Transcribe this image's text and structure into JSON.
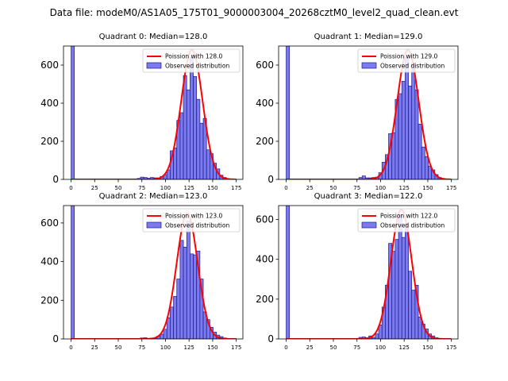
{
  "figure": {
    "title": "Data file: modeM0/AS1A05_175T01_9000003004_20268cztM0_level2_quad_clean.evt"
  },
  "style": {
    "bar_fill": "#7b7bef",
    "bar_edge": "#1a1a8c",
    "curve_color": "#ff0000",
    "axis_color": "#000000"
  },
  "chart_data": [
    {
      "type": "bar",
      "title": "Quadrant 0: Median=128.0",
      "xlim": [
        -8,
        182
      ],
      "ylim": [
        0,
        700
      ],
      "xticks": [
        0,
        25,
        50,
        75,
        100,
        125,
        150,
        175
      ],
      "yticks": [
        0,
        200,
        400,
        600
      ],
      "bin_width": 3.5,
      "legend": {
        "placement": "top-right",
        "line_label": "Poission with 128.0",
        "bar_label": "Observed distribution"
      },
      "bins": [
        {
          "x": 0,
          "count": 700
        },
        {
          "x": 70,
          "count": 5
        },
        {
          "x": 73.5,
          "count": 12
        },
        {
          "x": 77,
          "count": 10
        },
        {
          "x": 80.5,
          "count": 6
        },
        {
          "x": 84,
          "count": 10
        },
        {
          "x": 87.5,
          "count": 8
        },
        {
          "x": 91,
          "count": 8
        },
        {
          "x": 94.5,
          "count": 15
        },
        {
          "x": 98,
          "count": 25
        },
        {
          "x": 101.5,
          "count": 50
        },
        {
          "x": 105,
          "count": 150
        },
        {
          "x": 108.5,
          "count": 165
        },
        {
          "x": 112,
          "count": 310
        },
        {
          "x": 115.5,
          "count": 350
        },
        {
          "x": 119,
          "count": 545
        },
        {
          "x": 122.5,
          "count": 470
        },
        {
          "x": 126,
          "count": 640
        },
        {
          "x": 129.5,
          "count": 540
        },
        {
          "x": 133,
          "count": 420
        },
        {
          "x": 136.5,
          "count": 295
        },
        {
          "x": 140,
          "count": 320
        },
        {
          "x": 143.5,
          "count": 155
        },
        {
          "x": 147,
          "count": 135
        },
        {
          "x": 150.5,
          "count": 85
        },
        {
          "x": 154,
          "count": 55
        },
        {
          "x": 157.5,
          "count": 22
        },
        {
          "x": 161,
          "count": 10
        },
        {
          "x": 164.5,
          "count": 4
        }
      ],
      "curve": {
        "mean": 128.0,
        "peak": 680
      }
    },
    {
      "type": "bar",
      "title": "Quadrant 1: Median=129.0",
      "xlim": [
        -8,
        182
      ],
      "ylim": [
        0,
        700
      ],
      "xticks": [
        0,
        25,
        50,
        75,
        100,
        125,
        150,
        175
      ],
      "yticks": [
        0,
        200,
        400,
        600
      ],
      "bin_width": 3.5,
      "legend": {
        "placement": "top-right",
        "line_label": "Poission with 129.0",
        "bar_label": "Observed distribution"
      },
      "bins": [
        {
          "x": 0,
          "count": 700
        },
        {
          "x": 77,
          "count": 10
        },
        {
          "x": 80.5,
          "count": 18
        },
        {
          "x": 84,
          "count": 8
        },
        {
          "x": 87.5,
          "count": 8
        },
        {
          "x": 91,
          "count": 10
        },
        {
          "x": 94.5,
          "count": 12
        },
        {
          "x": 98,
          "count": 35
        },
        {
          "x": 101.5,
          "count": 90
        },
        {
          "x": 105,
          "count": 130
        },
        {
          "x": 108.5,
          "count": 240
        },
        {
          "x": 112,
          "count": 245
        },
        {
          "x": 115.5,
          "count": 420
        },
        {
          "x": 119,
          "count": 450
        },
        {
          "x": 122.5,
          "count": 515
        },
        {
          "x": 126,
          "count": 640
        },
        {
          "x": 129.5,
          "count": 490
        },
        {
          "x": 133,
          "count": 610
        },
        {
          "x": 136.5,
          "count": 470
        },
        {
          "x": 140,
          "count": 290
        },
        {
          "x": 143.5,
          "count": 170
        },
        {
          "x": 147,
          "count": 120
        },
        {
          "x": 150.5,
          "count": 70
        },
        {
          "x": 154,
          "count": 50
        },
        {
          "x": 157.5,
          "count": 25
        },
        {
          "x": 161,
          "count": 10
        },
        {
          "x": 164.5,
          "count": 5
        }
      ],
      "curve": {
        "mean": 129.0,
        "peak": 680
      }
    },
    {
      "type": "bar",
      "title": "Quadrant 2: Median=123.0",
      "xlim": [
        -8,
        182
      ],
      "ylim": [
        0,
        690
      ],
      "xticks": [
        0,
        25,
        50,
        75,
        100,
        125,
        150,
        175
      ],
      "yticks": [
        0,
        200,
        400,
        600
      ],
      "bin_width": 3.5,
      "legend": {
        "placement": "top-right",
        "line_label": "Poission with 123.0",
        "bar_label": "Observed distribution"
      },
      "bins": [
        {
          "x": 0,
          "count": 690
        },
        {
          "x": 73.5,
          "count": 5
        },
        {
          "x": 77,
          "count": 6
        },
        {
          "x": 84,
          "count": 4
        },
        {
          "x": 87.5,
          "count": 5
        },
        {
          "x": 91,
          "count": 15
        },
        {
          "x": 94.5,
          "count": 25
        },
        {
          "x": 98,
          "count": 50
        },
        {
          "x": 101.5,
          "count": 110
        },
        {
          "x": 105,
          "count": 165
        },
        {
          "x": 108.5,
          "count": 220
        },
        {
          "x": 112,
          "count": 310
        },
        {
          "x": 115.5,
          "count": 510
        },
        {
          "x": 119,
          "count": 475
        },
        {
          "x": 122.5,
          "count": 610
        },
        {
          "x": 126,
          "count": 440
        },
        {
          "x": 129.5,
          "count": 435
        },
        {
          "x": 133,
          "count": 455
        },
        {
          "x": 136.5,
          "count": 310
        },
        {
          "x": 140,
          "count": 140
        },
        {
          "x": 143.5,
          "count": 100
        },
        {
          "x": 147,
          "count": 60
        },
        {
          "x": 150.5,
          "count": 35
        },
        {
          "x": 154,
          "count": 20
        },
        {
          "x": 157.5,
          "count": 12
        },
        {
          "x": 161,
          "count": 5
        }
      ],
      "curve": {
        "mean": 123.0,
        "peak": 650
      }
    },
    {
      "type": "bar",
      "title": "Quadrant 3: Median=122.0",
      "xlim": [
        -8,
        182
      ],
      "ylim": [
        0,
        670
      ],
      "xticks": [
        0,
        25,
        50,
        75,
        100,
        125,
        150,
        175
      ],
      "yticks": [
        0,
        200,
        400,
        600
      ],
      "bin_width": 3.5,
      "legend": {
        "placement": "top-right",
        "line_label": "Poission with 122.0",
        "bar_label": "Observed distribution"
      },
      "bins": [
        {
          "x": 0,
          "count": 670
        },
        {
          "x": 77,
          "count": 8
        },
        {
          "x": 80.5,
          "count": 10
        },
        {
          "x": 84,
          "count": 6
        },
        {
          "x": 87.5,
          "count": 15
        },
        {
          "x": 91,
          "count": 8
        },
        {
          "x": 94.5,
          "count": 25
        },
        {
          "x": 98,
          "count": 70
        },
        {
          "x": 101.5,
          "count": 160
        },
        {
          "x": 105,
          "count": 270
        },
        {
          "x": 108.5,
          "count": 480
        },
        {
          "x": 112,
          "count": 440
        },
        {
          "x": 115.5,
          "count": 500
        },
        {
          "x": 119,
          "count": 620
        },
        {
          "x": 122.5,
          "count": 510
        },
        {
          "x": 126,
          "count": 580
        },
        {
          "x": 129.5,
          "count": 340
        },
        {
          "x": 133,
          "count": 245
        },
        {
          "x": 136.5,
          "count": 270
        },
        {
          "x": 140,
          "count": 110
        },
        {
          "x": 143.5,
          "count": 75
        },
        {
          "x": 147,
          "count": 50
        },
        {
          "x": 150.5,
          "count": 25
        },
        {
          "x": 154,
          "count": 15
        },
        {
          "x": 157.5,
          "count": 6
        }
      ],
      "curve": {
        "mean": 122.0,
        "peak": 650
      }
    }
  ]
}
